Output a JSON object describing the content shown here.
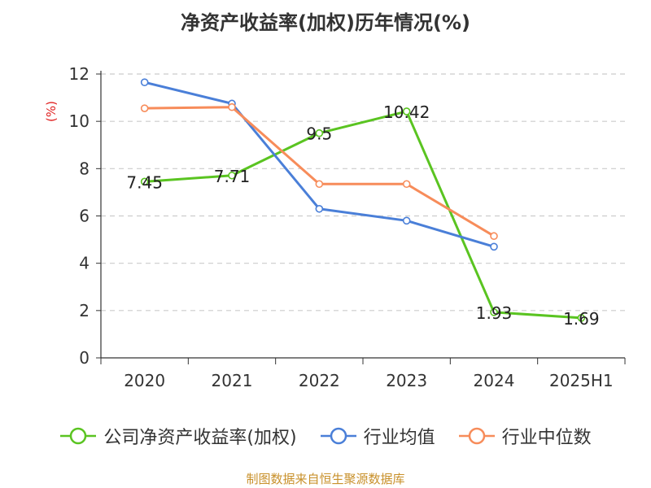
{
  "title": "净资产收益率(加权)历年情况(%)",
  "source": "制图数据来自恒生聚源数据库",
  "chart_data": {
    "type": "line",
    "title": "净资产收益率(加权)历年情况(%)",
    "ylabel": "(%)",
    "xlabel": "",
    "categories": [
      "2020",
      "2021",
      "2022",
      "2023",
      "2024",
      "2025H1"
    ],
    "ylim": [
      0,
      12
    ],
    "yticks": [
      0,
      2,
      4,
      6,
      8,
      10,
      12
    ],
    "grid": true,
    "grid_style": "dashed",
    "legend_position": "bottom",
    "series": [
      {
        "name": "公司净资产收益率(加权)",
        "color": "#5ac421",
        "values": [
          7.45,
          7.71,
          9.5,
          10.42,
          1.93,
          1.69
        ],
        "labels": [
          "7.45",
          "7.71",
          "9.5",
          "10.42",
          "1.93",
          "1.69"
        ]
      },
      {
        "name": "行业均值",
        "color": "#4a7fd8",
        "values": [
          11.65,
          10.75,
          6.3,
          5.8,
          4.7,
          null
        ]
      },
      {
        "name": "行业中位数",
        "color": "#f78c5a",
        "values": [
          10.55,
          10.6,
          7.35,
          7.35,
          5.15,
          null
        ]
      }
    ]
  }
}
